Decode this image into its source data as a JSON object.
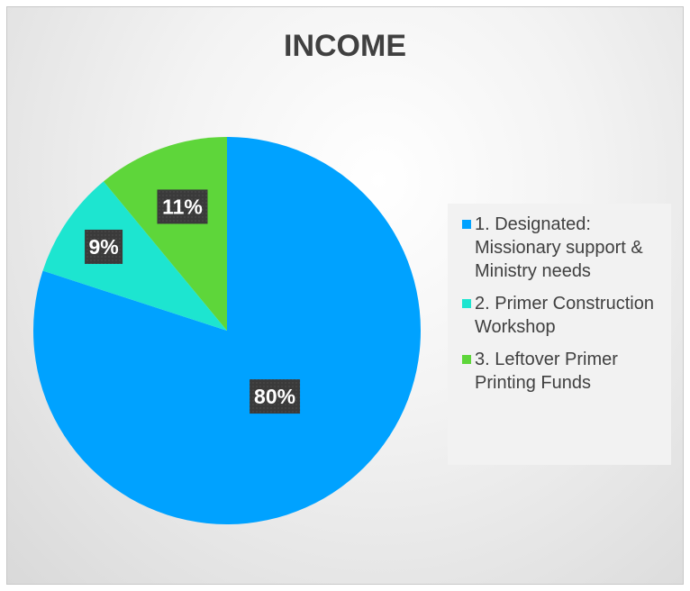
{
  "chart_data": {
    "type": "pie",
    "title": "INCOME",
    "categories": [
      "1. Designated: Missionary support & Ministry needs",
      "2. Primer Construction Workshop",
      "3. Leftover Primer Printing Funds"
    ],
    "values": [
      80,
      9,
      11
    ],
    "data_labels": [
      "80%",
      "9%",
      "11%"
    ],
    "colors": [
      "#00a2ff",
      "#1de5d0",
      "#5ed63a"
    ],
    "label_background": "#3a3a3a",
    "legend_position": "right"
  }
}
